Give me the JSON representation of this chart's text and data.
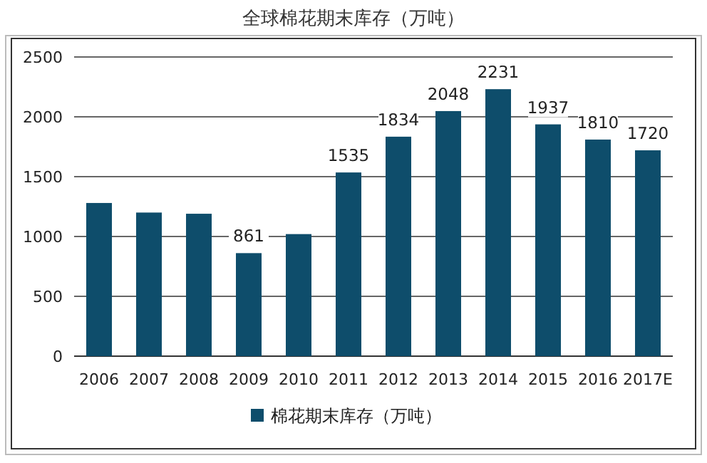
{
  "chart_data": {
    "type": "bar",
    "title": "全球棉花期末库存（万吨）",
    "categories": [
      "2006",
      "2007",
      "2008",
      "2009",
      "2010",
      "2011",
      "2012",
      "2013",
      "2014",
      "2015",
      "2016",
      "2017E"
    ],
    "series": [
      {
        "name": "棉花期末库存（万吨）",
        "color": "#0e4d6b",
        "values": [
          1280,
          1200,
          1190,
          861,
          1020,
          1535,
          1834,
          2048,
          2231,
          1937,
          1810,
          1720
        ],
        "value_labels": [
          null,
          null,
          null,
          "861",
          null,
          "1535",
          "1834",
          "2048",
          "2231",
          "1937",
          "1810",
          "1720"
        ]
      }
    ],
    "ylim": [
      0,
      2500
    ],
    "yticks": [
      0,
      500,
      1000,
      1500,
      2000,
      2500
    ],
    "grid": "y",
    "legend": "bottom"
  }
}
